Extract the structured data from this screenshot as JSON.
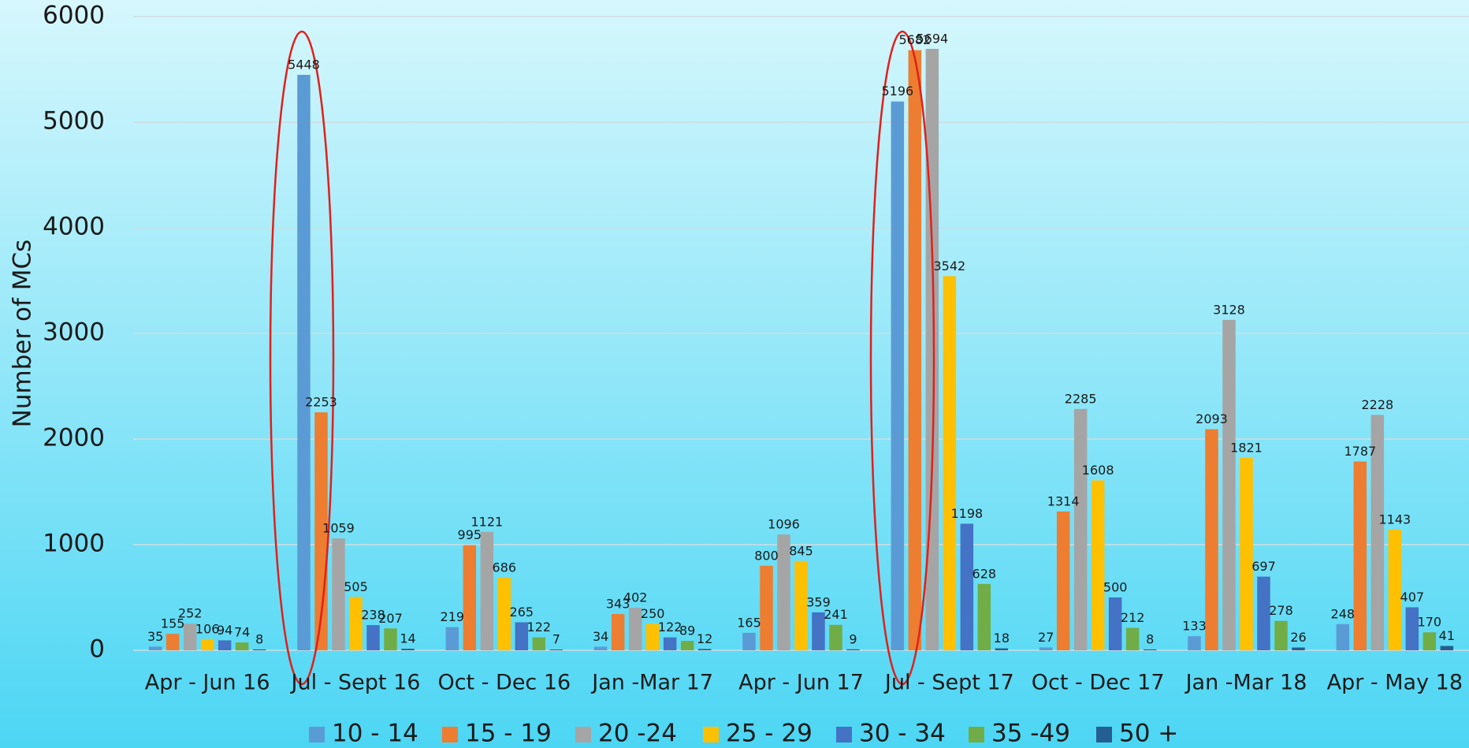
{
  "chart_data": {
    "type": "bar",
    "y_axis_label": "Number of MCs",
    "categories": [
      "Apr - Jun 16",
      "Jul - Sept 16",
      "Oct - Dec 16",
      "Jan -Mar 17",
      "Apr - Jun 17",
      "Jul - Sept 17",
      "Oct - Dec 17",
      "Jan -Mar 18",
      "Apr - May 18"
    ],
    "series": [
      {
        "name": "10 - 14",
        "color": "#5b9bd5",
        "values": [
          35,
          5448,
          219,
          34,
          165,
          5196,
          27,
          133,
          248
        ]
      },
      {
        "name": "15 - 19",
        "color": "#ed7d31",
        "values": [
          155,
          2253,
          995,
          343,
          800,
          5682,
          1314,
          2093,
          1787
        ]
      },
      {
        "name": "20 -24",
        "color": "#a5a5a5",
        "values": [
          252,
          1059,
          1121,
          402,
          1096,
          5694,
          2285,
          3128,
          2228
        ]
      },
      {
        "name": "25 - 29",
        "color": "#ffc000",
        "values": [
          106,
          505,
          686,
          250,
          845,
          3542,
          1608,
          1821,
          1143
        ]
      },
      {
        "name": "30 - 34",
        "color": "#4472c4",
        "values": [
          94,
          238,
          265,
          122,
          359,
          1198,
          500,
          697,
          407
        ]
      },
      {
        "name": "35 -49",
        "color": "#70ad47",
        "values": [
          74,
          207,
          122,
          89,
          241,
          628,
          212,
          278,
          170
        ]
      },
      {
        "name": "50 +",
        "color": "#255e91",
        "values": [
          8,
          14,
          7,
          12,
          9,
          18,
          8,
          26,
          41
        ]
      }
    ],
    "ylim": [
      0,
      6000
    ],
    "yticks": [
      0,
      1000,
      2000,
      3000,
      4000,
      5000,
      6000
    ],
    "grid": true,
    "legend": "bottom"
  }
}
